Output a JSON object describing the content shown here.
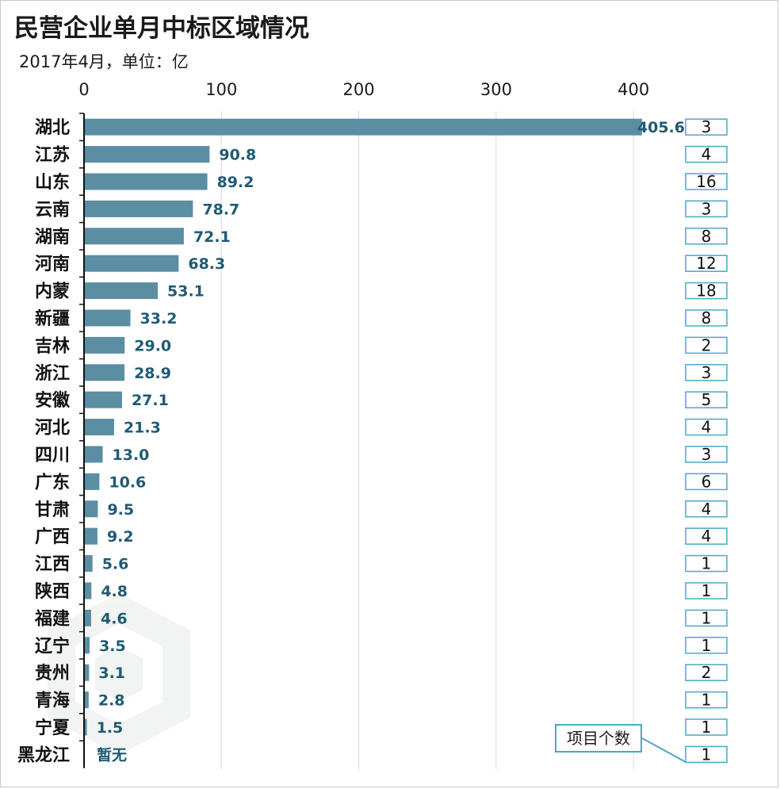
{
  "title": "民营企业单月中标区域情况",
  "subtitle": "2017年4月，单位：亿",
  "colors": {
    "bar": "#5c8ea3",
    "value_label": "#1f5b73",
    "count_border": "#4aa8c8"
  },
  "count_legend_label": "项目个数",
  "chart_data": {
    "type": "bar",
    "orientation": "horizontal",
    "title": "民营企业单月中标区域情况",
    "subtitle": "2017年4月，单位：亿",
    "xlim": [
      0,
      450
    ],
    "xticks": [
      0,
      100,
      200,
      300,
      400
    ],
    "grid": true,
    "categories": [
      "湖北",
      "江苏",
      "山东",
      "云南",
      "湖南",
      "河南",
      "内蒙",
      "新疆",
      "吉林",
      "浙江",
      "安徽",
      "河北",
      "四川",
      "广东",
      "甘肃",
      "广西",
      "江西",
      "陕西",
      "福建",
      "辽宁",
      "贵州",
      "青海",
      "宁夏",
      "黑龙江"
    ],
    "values": [
      405.6,
      90.8,
      89.2,
      78.7,
      72.1,
      68.3,
      53.1,
      33.2,
      29.0,
      28.9,
      27.1,
      21.3,
      13.0,
      10.6,
      9.5,
      9.2,
      5.6,
      4.8,
      4.6,
      3.5,
      3.1,
      2.8,
      1.5,
      null
    ],
    "value_labels": [
      "405.6",
      "90.8",
      "89.2",
      "78.7",
      "72.1",
      "68.3",
      "53.1",
      "33.2",
      "29.0",
      "28.9",
      "27.1",
      "21.3",
      "13.0",
      "10.6",
      "9.5",
      "9.2",
      "5.6",
      "4.8",
      "4.6",
      "3.5",
      "3.1",
      "2.8",
      "1.5",
      "暂无"
    ],
    "project_counts": [
      3,
      4,
      16,
      3,
      8,
      12,
      18,
      8,
      2,
      3,
      5,
      4,
      3,
      6,
      4,
      4,
      1,
      1,
      1,
      1,
      2,
      1,
      1,
      1
    ]
  }
}
